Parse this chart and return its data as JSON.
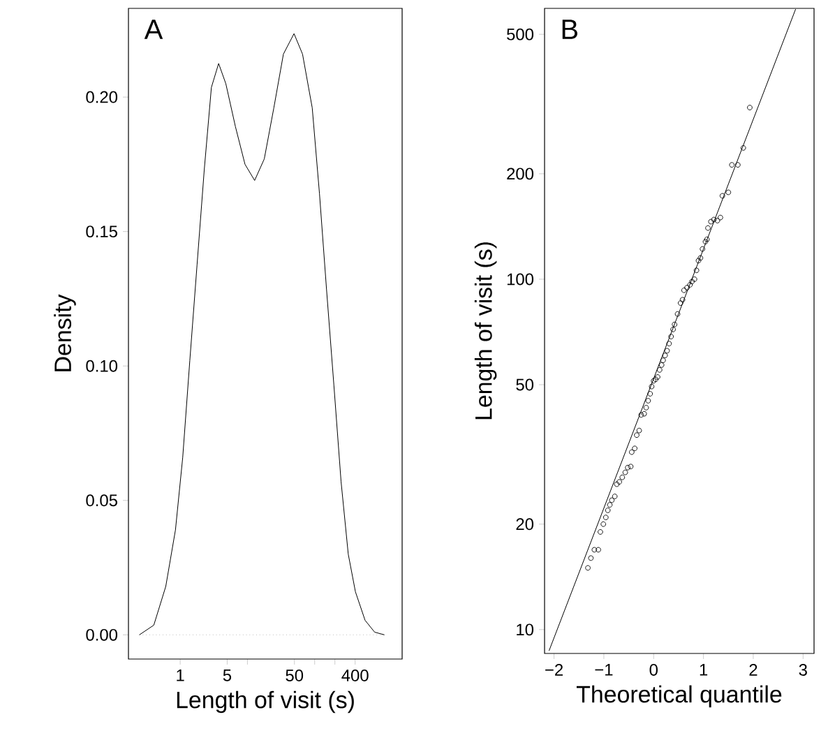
{
  "chart_data": [
    {
      "type": "line",
      "title": "A",
      "xlabel": "Length of visit (s)",
      "ylabel": "Density",
      "log": "x",
      "xlim": [
        0.17,
        2000
      ],
      "ylim": [
        -0.009,
        0.233
      ],
      "xticks": [
        1,
        5,
        {
          "value": 10,
          "label": null
        },
        50,
        {
          "value": 100,
          "label": null
        },
        {
          "value": 200,
          "label": null
        },
        400
      ],
      "yticks": [
        {
          "value": 0,
          "label": "0.00"
        },
        {
          "value": 0.05,
          "label": "0.05"
        },
        {
          "value": 0.1,
          "label": "0.10"
        },
        {
          "value": 0.15,
          "label": "0.15"
        },
        {
          "value": 0.2,
          "label": "0.20"
        }
      ],
      "ref_lines": [
        {
          "axis": "y",
          "value": 0,
          "color": "#999999",
          "line_style": "dotted"
        }
      ],
      "series": [
        {
          "color": "#000000",
          "x": [
            0.247,
            0.405,
            0.61,
            0.85,
            1.09,
            1.39,
            1.78,
            2.28,
            2.91,
            3.73,
            4.77,
            6.63,
            9.2,
            12.8,
            17.8,
            24.7,
            34.3,
            49.3,
            66,
            92,
            118,
            150,
            193,
            247,
            316,
            404,
            562,
            780,
            1090
          ],
          "values": [
            0,
            0.0036,
            0.018,
            0.039,
            0.066,
            0.102,
            0.1375,
            0.173,
            0.2036,
            0.2125,
            0.205,
            0.189,
            0.175,
            0.169,
            0.177,
            0.196,
            0.216,
            0.2236,
            0.216,
            0.196,
            0.164,
            0.1286,
            0.093,
            0.057,
            0.03,
            0.016,
            0.0054,
            0.001,
            0
          ]
        }
      ]
    },
    {
      "type": "scatter",
      "title": "B",
      "xlabel": "Theoretical quantile",
      "ylabel": "Length of visit (s)",
      "log": "y",
      "xlim": [
        -2.19,
        3.22
      ],
      "ylim": [
        8.55,
        593
      ],
      "xticks": [
        {
          "value": -2,
          "label": "−2"
        },
        {
          "value": -1,
          "label": "−1"
        },
        0,
        1,
        2,
        3
      ],
      "yticks": [
        10,
        20,
        50,
        100,
        200,
        500
      ],
      "series": [
        {
          "type": "scatter",
          "marker": "circle",
          "color": "#000000",
          "x": [
            -1.32,
            -1.26,
            -1.19,
            -1.11,
            -1.07,
            -1.01,
            -0.96,
            -0.92,
            -0.88,
            -0.84,
            -0.78,
            -0.74,
            -0.69,
            -0.63,
            -0.57,
            -0.52,
            -0.46,
            -0.44,
            -0.38,
            -0.34,
            -0.29,
            -0.25,
            -0.19,
            -0.15,
            -0.11,
            -0.07,
            -0.04,
            0.0,
            0.04,
            0.08,
            0.12,
            0.16,
            0.19,
            0.23,
            0.27,
            0.31,
            0.35,
            0.39,
            0.42,
            0.48,
            0.54,
            0.58,
            0.61,
            0.67,
            0.73,
            0.77,
            0.82,
            0.86,
            0.9,
            0.94,
            0.98,
            1.04,
            1.07,
            1.09,
            1.15,
            1.21,
            1.28,
            1.34,
            1.38,
            1.5,
            1.57,
            1.69,
            1.8,
            1.93
          ],
          "values": [
            15.0,
            16.0,
            16.9,
            16.9,
            19.0,
            20.0,
            20.9,
            21.9,
            22.7,
            23.4,
            24.0,
            26.0,
            26.4,
            27.2,
            28.1,
            29.0,
            29.2,
            32.1,
            32.9,
            35.9,
            37.0,
            41.0,
            41.3,
            43.0,
            45.0,
            47.1,
            49.4,
            51.3,
            51.8,
            52.6,
            55.1,
            56.9,
            58.7,
            60.6,
            62.5,
            65.5,
            68.6,
            71.9,
            74.3,
            79.6,
            85.5,
            87.4,
            93.0,
            94.6,
            96.4,
            98.5,
            100,
            106,
            113,
            115,
            122,
            128,
            130,
            140,
            146,
            148,
            147,
            150,
            173,
            177,
            212,
            212,
            237,
            309
          ]
        },
        {
          "type": "line",
          "color": "#000000",
          "x": [
            -2.1,
            2.85
          ],
          "values": [
            8.7,
            590
          ]
        }
      ]
    }
  ]
}
